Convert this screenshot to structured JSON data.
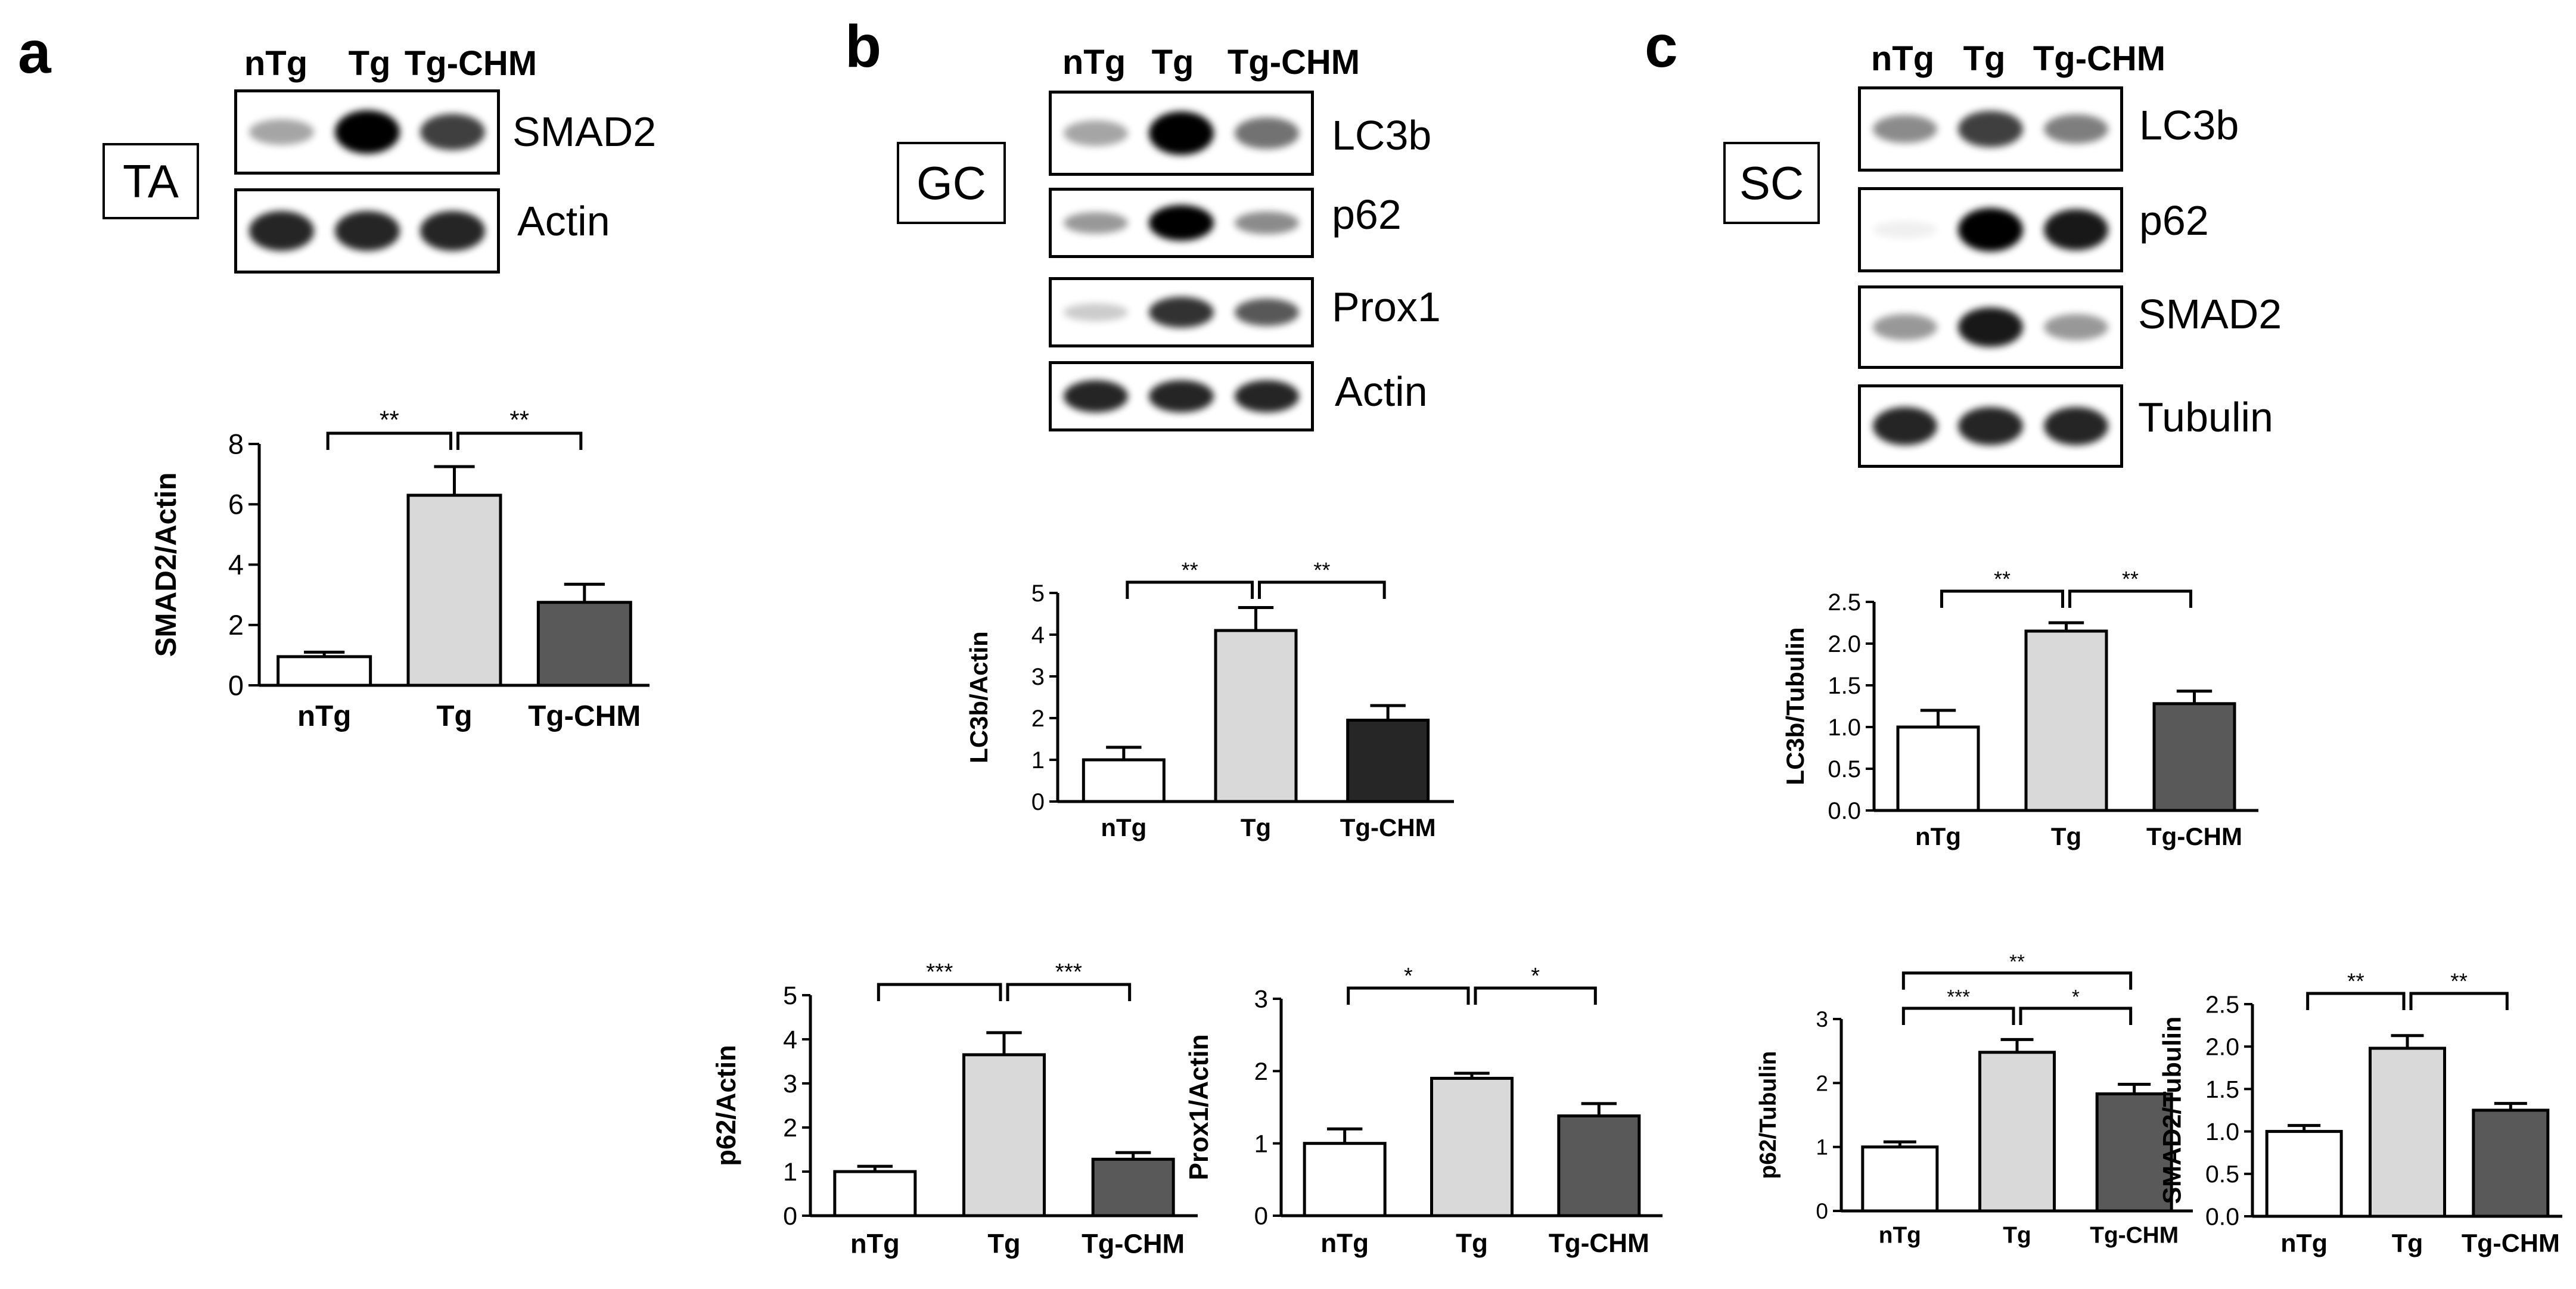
{
  "panels": {
    "a": {
      "letter": "a",
      "tissue": "TA",
      "lanes": [
        "nTg",
        "Tg",
        "Tg-CHM"
      ],
      "blots": [
        {
          "label": "SMAD2",
          "bands": [
            0.35,
            1.0,
            0.75
          ]
        },
        {
          "label": "Actin",
          "bands": [
            0.85,
            0.85,
            0.85
          ]
        }
      ]
    },
    "b": {
      "letter": "b",
      "tissue": "GC",
      "lanes": [
        "nTg",
        "Tg",
        "Tg-CHM"
      ],
      "blots": [
        {
          "label": "LC3b",
          "bands": [
            0.35,
            1.0,
            0.55
          ]
        },
        {
          "label": "p62",
          "bands": [
            0.4,
            1.0,
            0.45
          ]
        },
        {
          "label": "Prox1",
          "bands": [
            0.2,
            0.8,
            0.65
          ]
        },
        {
          "label": "Actin",
          "bands": [
            0.85,
            0.85,
            0.85
          ]
        }
      ]
    },
    "c": {
      "letter": "c",
      "tissue": "SC",
      "lanes": [
        "nTg",
        "Tg",
        "Tg-CHM"
      ],
      "blots": [
        {
          "label": "LC3b",
          "bands": [
            0.45,
            0.75,
            0.5
          ]
        },
        {
          "label": "p62",
          "bands": [
            0.05,
            1.0,
            0.9
          ]
        },
        {
          "label": "SMAD2",
          "bands": [
            0.4,
            0.9,
            0.4
          ]
        },
        {
          "label": "Tubulin",
          "bands": [
            0.85,
            0.85,
            0.85
          ]
        }
      ]
    }
  },
  "chart_data": [
    {
      "id": "a-smad2",
      "type": "bar",
      "categories": [
        "nTg",
        "Tg",
        "Tg-CHM"
      ],
      "values": [
        0.95,
        6.3,
        2.75
      ],
      "errors": [
        0.15,
        0.95,
        0.6
      ],
      "colors": [
        "#ffffff",
        "#d9d9d9",
        "#595959"
      ],
      "ylabel": "SMAD2/Actin",
      "ylim": [
        0,
        8
      ],
      "yticks": [
        "0",
        "2",
        "4",
        "6",
        "8"
      ],
      "significance": [
        {
          "from": 0,
          "to": 1,
          "label": "**",
          "level": 1
        },
        {
          "from": 1,
          "to": 2,
          "label": "**",
          "level": 1
        }
      ]
    },
    {
      "id": "b-lc3b",
      "type": "bar",
      "categories": [
        "nTg",
        "Tg",
        "Tg-CHM"
      ],
      "values": [
        1.0,
        4.1,
        1.95
      ],
      "errors": [
        0.3,
        0.55,
        0.35
      ],
      "colors": [
        "#ffffff",
        "#d9d9d9",
        "#262626"
      ],
      "ylabel": "LC3b/Actin",
      "ylim": [
        0,
        5
      ],
      "yticks": [
        "0",
        "1",
        "2",
        "3",
        "4",
        "5"
      ],
      "significance": [
        {
          "from": 0,
          "to": 1,
          "label": "**",
          "level": 1
        },
        {
          "from": 1,
          "to": 2,
          "label": "**",
          "level": 1
        }
      ]
    },
    {
      "id": "c-lc3b",
      "type": "bar",
      "categories": [
        "nTg",
        "Tg",
        "Tg-CHM"
      ],
      "values": [
        1.0,
        2.15,
        1.28
      ],
      "errors": [
        0.2,
        0.1,
        0.15
      ],
      "colors": [
        "#ffffff",
        "#d9d9d9",
        "#595959"
      ],
      "ylabel": "LC3b/Tubulin",
      "ylim": [
        0,
        2.5
      ],
      "yticks": [
        "0.0",
        "0.5",
        "1.0",
        "1.5",
        "2.0",
        "2.5"
      ],
      "significance": [
        {
          "from": 0,
          "to": 1,
          "label": "**",
          "level": 1
        },
        {
          "from": 1,
          "to": 2,
          "label": "**",
          "level": 1
        }
      ]
    },
    {
      "id": "b-p62",
      "type": "bar",
      "categories": [
        "nTg",
        "Tg",
        "Tg-CHM"
      ],
      "values": [
        1.0,
        3.65,
        1.28
      ],
      "errors": [
        0.12,
        0.5,
        0.15
      ],
      "colors": [
        "#ffffff",
        "#d9d9d9",
        "#595959"
      ],
      "ylabel": "p62/Actin",
      "ylim": [
        0,
        5
      ],
      "yticks": [
        "0",
        "1",
        "2",
        "3",
        "4",
        "5"
      ],
      "significance": [
        {
          "from": 0,
          "to": 1,
          "label": "***",
          "level": 1
        },
        {
          "from": 1,
          "to": 2,
          "label": "***",
          "level": 1
        }
      ]
    },
    {
      "id": "b-prox1",
      "type": "bar",
      "categories": [
        "nTg",
        "Tg",
        "Tg-CHM"
      ],
      "values": [
        1.0,
        1.9,
        1.38
      ],
      "errors": [
        0.2,
        0.07,
        0.17
      ],
      "colors": [
        "#ffffff",
        "#d9d9d9",
        "#595959"
      ],
      "ylabel": "Prox1/Actin",
      "ylim": [
        0,
        3
      ],
      "yticks": [
        "0",
        "1",
        "2",
        "3"
      ],
      "significance": [
        {
          "from": 0,
          "to": 1,
          "label": "*",
          "level": 1
        },
        {
          "from": 1,
          "to": 2,
          "label": "*",
          "level": 1
        }
      ]
    },
    {
      "id": "c-p62",
      "type": "bar",
      "categories": [
        "nTg",
        "Tg",
        "Tg-CHM"
      ],
      "values": [
        1.0,
        2.48,
        1.83
      ],
      "errors": [
        0.08,
        0.2,
        0.15
      ],
      "colors": [
        "#ffffff",
        "#d9d9d9",
        "#595959"
      ],
      "ylabel": "p62/Tubulin",
      "ylim": [
        0,
        3
      ],
      "yticks": [
        "0",
        "1",
        "2",
        "3"
      ],
      "significance": [
        {
          "from": 0,
          "to": 1,
          "label": "***",
          "level": 1
        },
        {
          "from": 1,
          "to": 2,
          "label": "*",
          "level": 1
        },
        {
          "from": 0,
          "to": 2,
          "label": "**",
          "level": 2
        }
      ]
    },
    {
      "id": "c-smad2",
      "type": "bar",
      "categories": [
        "nTg",
        "Tg",
        "Tg-CHM"
      ],
      "values": [
        1.0,
        1.98,
        1.25
      ],
      "errors": [
        0.07,
        0.15,
        0.08
      ],
      "colors": [
        "#ffffff",
        "#d9d9d9",
        "#595959"
      ],
      "ylabel": "SMAD2/Tubulin",
      "ylim": [
        0,
        2.5
      ],
      "yticks": [
        "0.0",
        "0.5",
        "1.0",
        "1.5",
        "2.0",
        "2.5"
      ],
      "significance": [
        {
          "from": 0,
          "to": 1,
          "label": "**",
          "level": 1
        },
        {
          "from": 1,
          "to": 2,
          "label": "**",
          "level": 1
        }
      ]
    }
  ]
}
